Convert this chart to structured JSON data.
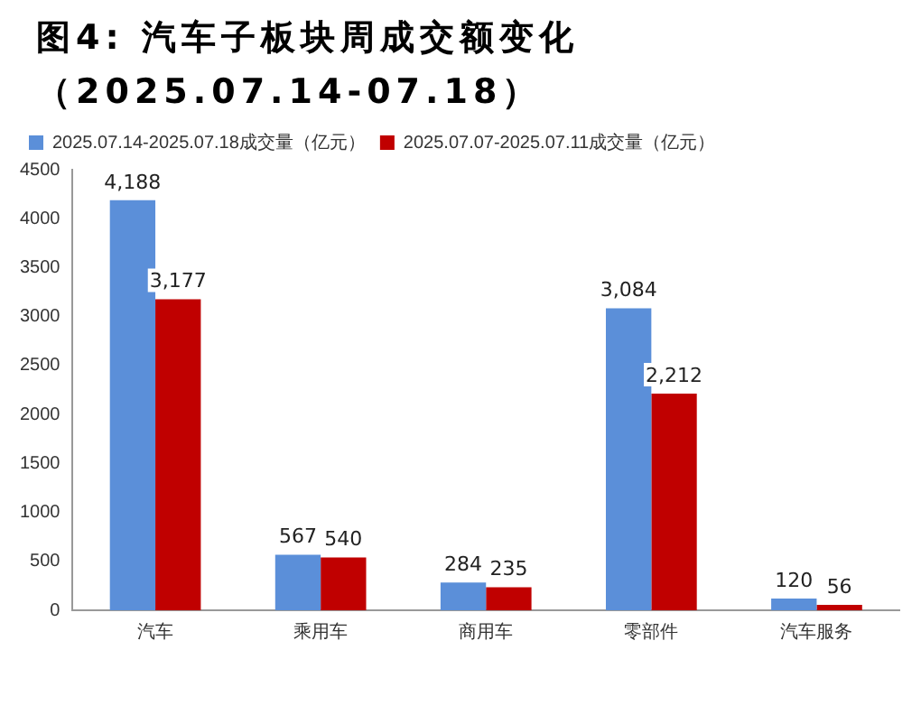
{
  "chart_data": {
    "type": "bar",
    "title": "图4:  汽车子板块周成交额变化（2025.07.14-07.18）",
    "categories": [
      "汽车",
      "乘用车",
      "商用车",
      "零部件",
      "汽车服务"
    ],
    "series": [
      {
        "name": "2025.07.14-2025.07.18成交量（亿元）",
        "color": "#5b8fd9",
        "values": [
          4188,
          567,
          284,
          3084,
          120
        ],
        "value_labels": [
          "4,188",
          "567",
          "284",
          "3,084",
          "120"
        ]
      },
      {
        "name": "2025.07.07-2025.07.11成交量（亿元）",
        "color": "#c00000",
        "values": [
          3177,
          540,
          235,
          2212,
          56
        ],
        "value_labels": [
          "3,177",
          "540",
          "235",
          "2,212",
          "56"
        ]
      }
    ],
    "ylim": [
      0,
      4500
    ],
    "yticks": [
      0,
      500,
      1000,
      1500,
      2000,
      2500,
      3000,
      3500,
      4000,
      4500
    ],
    "grid": false,
    "legend": "top left"
  }
}
